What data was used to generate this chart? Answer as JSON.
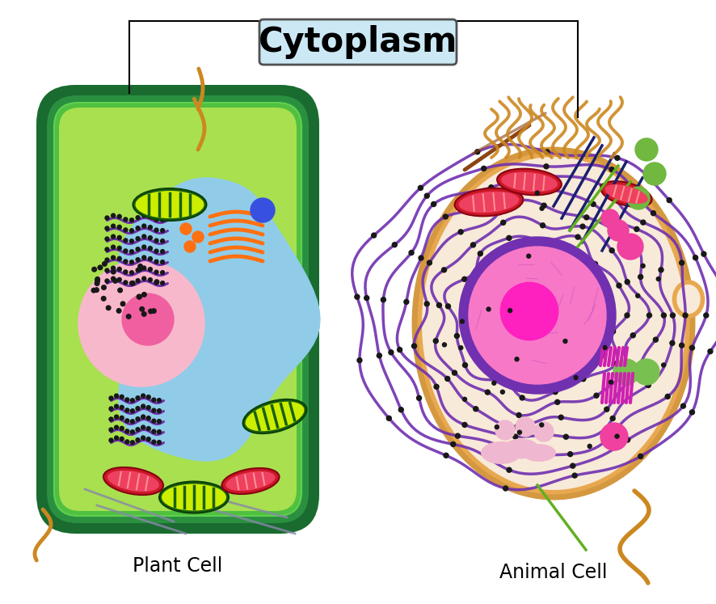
{
  "title": "Cytoplasm",
  "plant_cell_label": "Plant Cell",
  "animal_cell_label": "Animal Cell",
  "bg_color": "#ffffff",
  "title_box_color": "#cce8f5",
  "title_font_size": 30,
  "label_font_size": 17,
  "plant_wall_color": "#1a6b30",
  "plant_membrane_color": "#2a9040",
  "plant_inner_color": "#a8e050",
  "vacuole_color": "#90cce8",
  "nucleus_plant_color": "#f8b8cc",
  "nucleus_plant_inner": "#f060a0",
  "animal_outer_color": "#e8a850",
  "animal_membrane_color": "#d49840",
  "animal_inner_color": "#f8ead8",
  "nucleus_animal_color": "#f880c8",
  "nucleus_animal_inner": "#ff20c0",
  "nucleus_animal_outer_ring": "#8030b0",
  "chloroplast_dark": "#1a6010",
  "chloroplast_light": "#88cc00",
  "chloroplast_yellow": "#ccee00",
  "mito_outer": "#cc1828",
  "mito_inner": "#ee4060",
  "mito_line": "#ff9090",
  "er_purple": "#7030b0",
  "golgi_orange": "#ff7010",
  "ribosome_dark": "#181818",
  "cilia_color": "#cc8820",
  "flagellum_color": "#cc8820",
  "animal_dark_navy": "#182070",
  "animal_green_line": "#60b020",
  "animal_pink_golgi": "#f080b0",
  "animal_golgi_blob": "#f0c0d8",
  "animal_green_vesicle": "#70b840",
  "animal_pink_vesicle": "#f040a0",
  "animal_magenta_fiber": "#d030b0",
  "brown_line": "#8B4513"
}
